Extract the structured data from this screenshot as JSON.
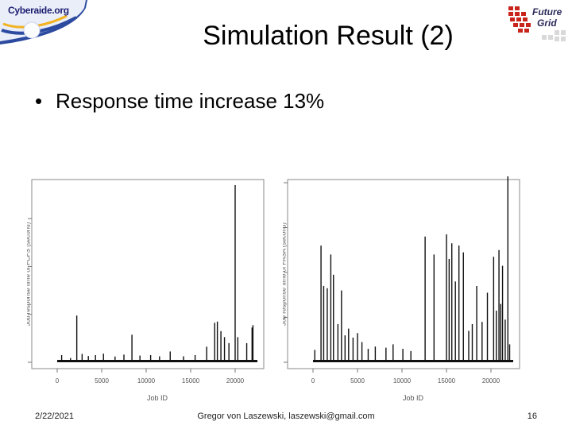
{
  "header": {
    "logo_left_text": "Cyberaide.org",
    "logo_right_line1": "Future",
    "logo_right_line2": "Grid",
    "title": "Simulation Result (2)"
  },
  "content": {
    "bullet_text": "Response time increase 13%"
  },
  "footer": {
    "date": "2/22/2021",
    "center": "Gregor von Laszewski, laszewski@gmail.com",
    "page": "16"
  },
  "chart_data": [
    {
      "type": "bar",
      "xlabel": "Job ID",
      "ylabel": "Job response time of FCFS (second)",
      "xlim": [
        0,
        22500
      ],
      "ylim": [
        0,
        7500
      ],
      "x_ticks": [
        0,
        5000,
        10000,
        15000,
        20000
      ],
      "y_ticks": [
        0,
        2000,
        4000,
        6000
      ],
      "x": [
        500,
        1500,
        2200,
        2800,
        3500,
        4300,
        5200,
        6500,
        7500,
        8400,
        9300,
        10500,
        11500,
        12700,
        14200,
        15500,
        16800,
        17700,
        18000,
        18400,
        18800,
        19300,
        20000,
        20300,
        21300,
        21900,
        22000
      ],
      "values": [
        300,
        180,
        1950,
        350,
        260,
        300,
        360,
        240,
        320,
        1150,
        280,
        300,
        250,
        450,
        250,
        300,
        650,
        1650,
        1700,
        1300,
        1050,
        800,
        7400,
        1050,
        800,
        1450,
        1550
      ]
    },
    {
      "type": "bar",
      "xlabel": "Job ID",
      "ylabel": "Job response time of FASA (second)",
      "xlim": [
        0,
        22500
      ],
      "ylim": [
        0,
        8000
      ],
      "x_ticks": [
        0,
        5000,
        10000,
        15000,
        20000
      ],
      "y_ticks": [
        0,
        2000,
        4000,
        6000,
        8000
      ],
      "x": [
        200,
        900,
        1200,
        1600,
        2000,
        2300,
        2800,
        3200,
        3600,
        4000,
        4500,
        5000,
        5500,
        6200,
        7000,
        8200,
        9000,
        10100,
        11000,
        12600,
        13600,
        15000,
        15300,
        15600,
        16000,
        16400,
        16900,
        17500,
        17900,
        18400,
        19000,
        19600,
        20300,
        20600,
        20900,
        21100,
        21300,
        21600,
        21900,
        22100
      ],
      "values": [
        550,
        5200,
        3400,
        3300,
        4800,
        3900,
        1700,
        3200,
        1200,
        1500,
        1100,
        1300,
        900,
        600,
        700,
        650,
        800,
        600,
        500,
        5600,
        4800,
        5700,
        4600,
        5300,
        3600,
        5200,
        4900,
        1400,
        1700,
        3400,
        1800,
        3100,
        4700,
        2300,
        5000,
        2600,
        4300,
        1900,
        8600,
        800
      ]
    }
  ]
}
